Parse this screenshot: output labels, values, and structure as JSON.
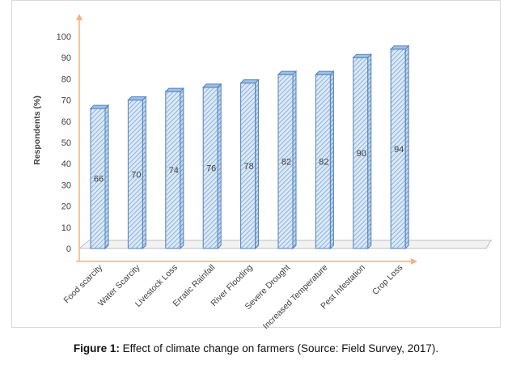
{
  "chart_data": {
    "type": "bar",
    "title": "",
    "xlabel": "",
    "ylabel": "Respondents (%)",
    "ylim": [
      0,
      100
    ],
    "yticks": [
      0,
      10,
      20,
      30,
      40,
      50,
      60,
      70,
      80,
      90,
      100
    ],
    "grid": false,
    "legend": "none",
    "categories": [
      "Food scarcity",
      "Water Scarcity",
      "Livestock Loss",
      "Erratic Rainfall",
      "River Flooding",
      "Severe Drought",
      "Increased Temperature",
      "Pest Infestation",
      "Crop Loss"
    ],
    "values": [
      66,
      70,
      74,
      76,
      78,
      82,
      82,
      90,
      94
    ],
    "data_labels": [
      "66",
      "70",
      "74",
      "76",
      "78",
      "82",
      "82",
      "90",
      "94"
    ]
  },
  "caption": {
    "label": "Figure 1:",
    "text": " Effect of climate change on farmers (Source: Field Survey, 2017)."
  },
  "colors": {
    "bar_fill": "#dbe8f6",
    "bar_hatch": "#7aa7d6",
    "bar_edge": "#4f81bd",
    "axis_arrow": "#f4b183",
    "floor": "#bfbfbf",
    "text": "#404040"
  }
}
